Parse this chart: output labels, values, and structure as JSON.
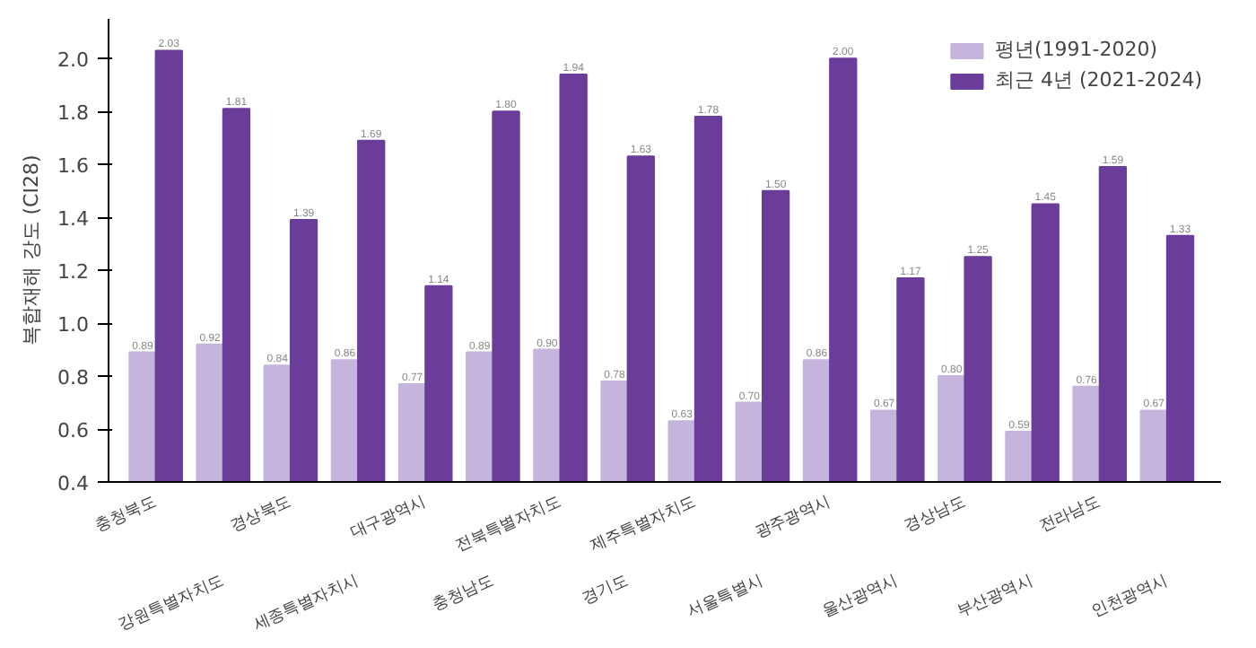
{
  "chart_data": {
    "type": "bar",
    "ylabel": "복합재해 강도 (CI28)",
    "categories": [
      "충청북도",
      "강원특별자치도",
      "경상북도",
      "세종특별자치시",
      "대구광역시",
      "충청남도",
      "전북특별자치도",
      "경기도",
      "제주특별자치도",
      "서울특별시",
      "광주광역시",
      "울산광역시",
      "경상남도",
      "부산광역시",
      "전라남도",
      "인천광역시"
    ],
    "series": [
      {
        "name": "평년(1991-2020)",
        "color": "#c5b5dc",
        "values": [
          0.89,
          0.92,
          0.84,
          0.86,
          0.77,
          0.89,
          0.9,
          0.78,
          0.63,
          0.7,
          0.86,
          0.67,
          0.8,
          0.59,
          0.76,
          0.67
        ]
      },
      {
        "name": "최근 4년 (2021-2024)",
        "color": "#6a3d9a",
        "values": [
          2.03,
          1.81,
          1.39,
          1.69,
          1.14,
          1.8,
          1.94,
          1.63,
          1.78,
          1.5,
          2.0,
          1.17,
          1.25,
          1.45,
          1.59,
          1.33
        ]
      }
    ],
    "ylim": [
      0.4,
      2.15
    ],
    "yticks": [
      0.4,
      0.6,
      0.8,
      {
        "value": 1,
        "label": "1.0"
      },
      1.2,
      1.4,
      1.6,
      1.8,
      {
        "value": 2,
        "label": "2.0"
      }
    ],
    "value_labels": [
      [
        "0.89",
        "0.92",
        "0.84",
        "0.86",
        "0.77",
        "0.89",
        "0.90",
        "0.78",
        "0.63",
        "0.70",
        "0.86",
        "0.67",
        "0.80",
        "0.59",
        "0.76",
        "0.67"
      ],
      [
        "2.03",
        "1.81",
        "1.39",
        "1.69",
        "1.14",
        "1.80",
        "1.94",
        "1.63",
        "1.78",
        "1.50",
        "2.00",
        "1.17",
        "1.25",
        "1.45",
        "1.59",
        "1.33"
      ]
    ],
    "grid": false,
    "legend": "top right"
  }
}
